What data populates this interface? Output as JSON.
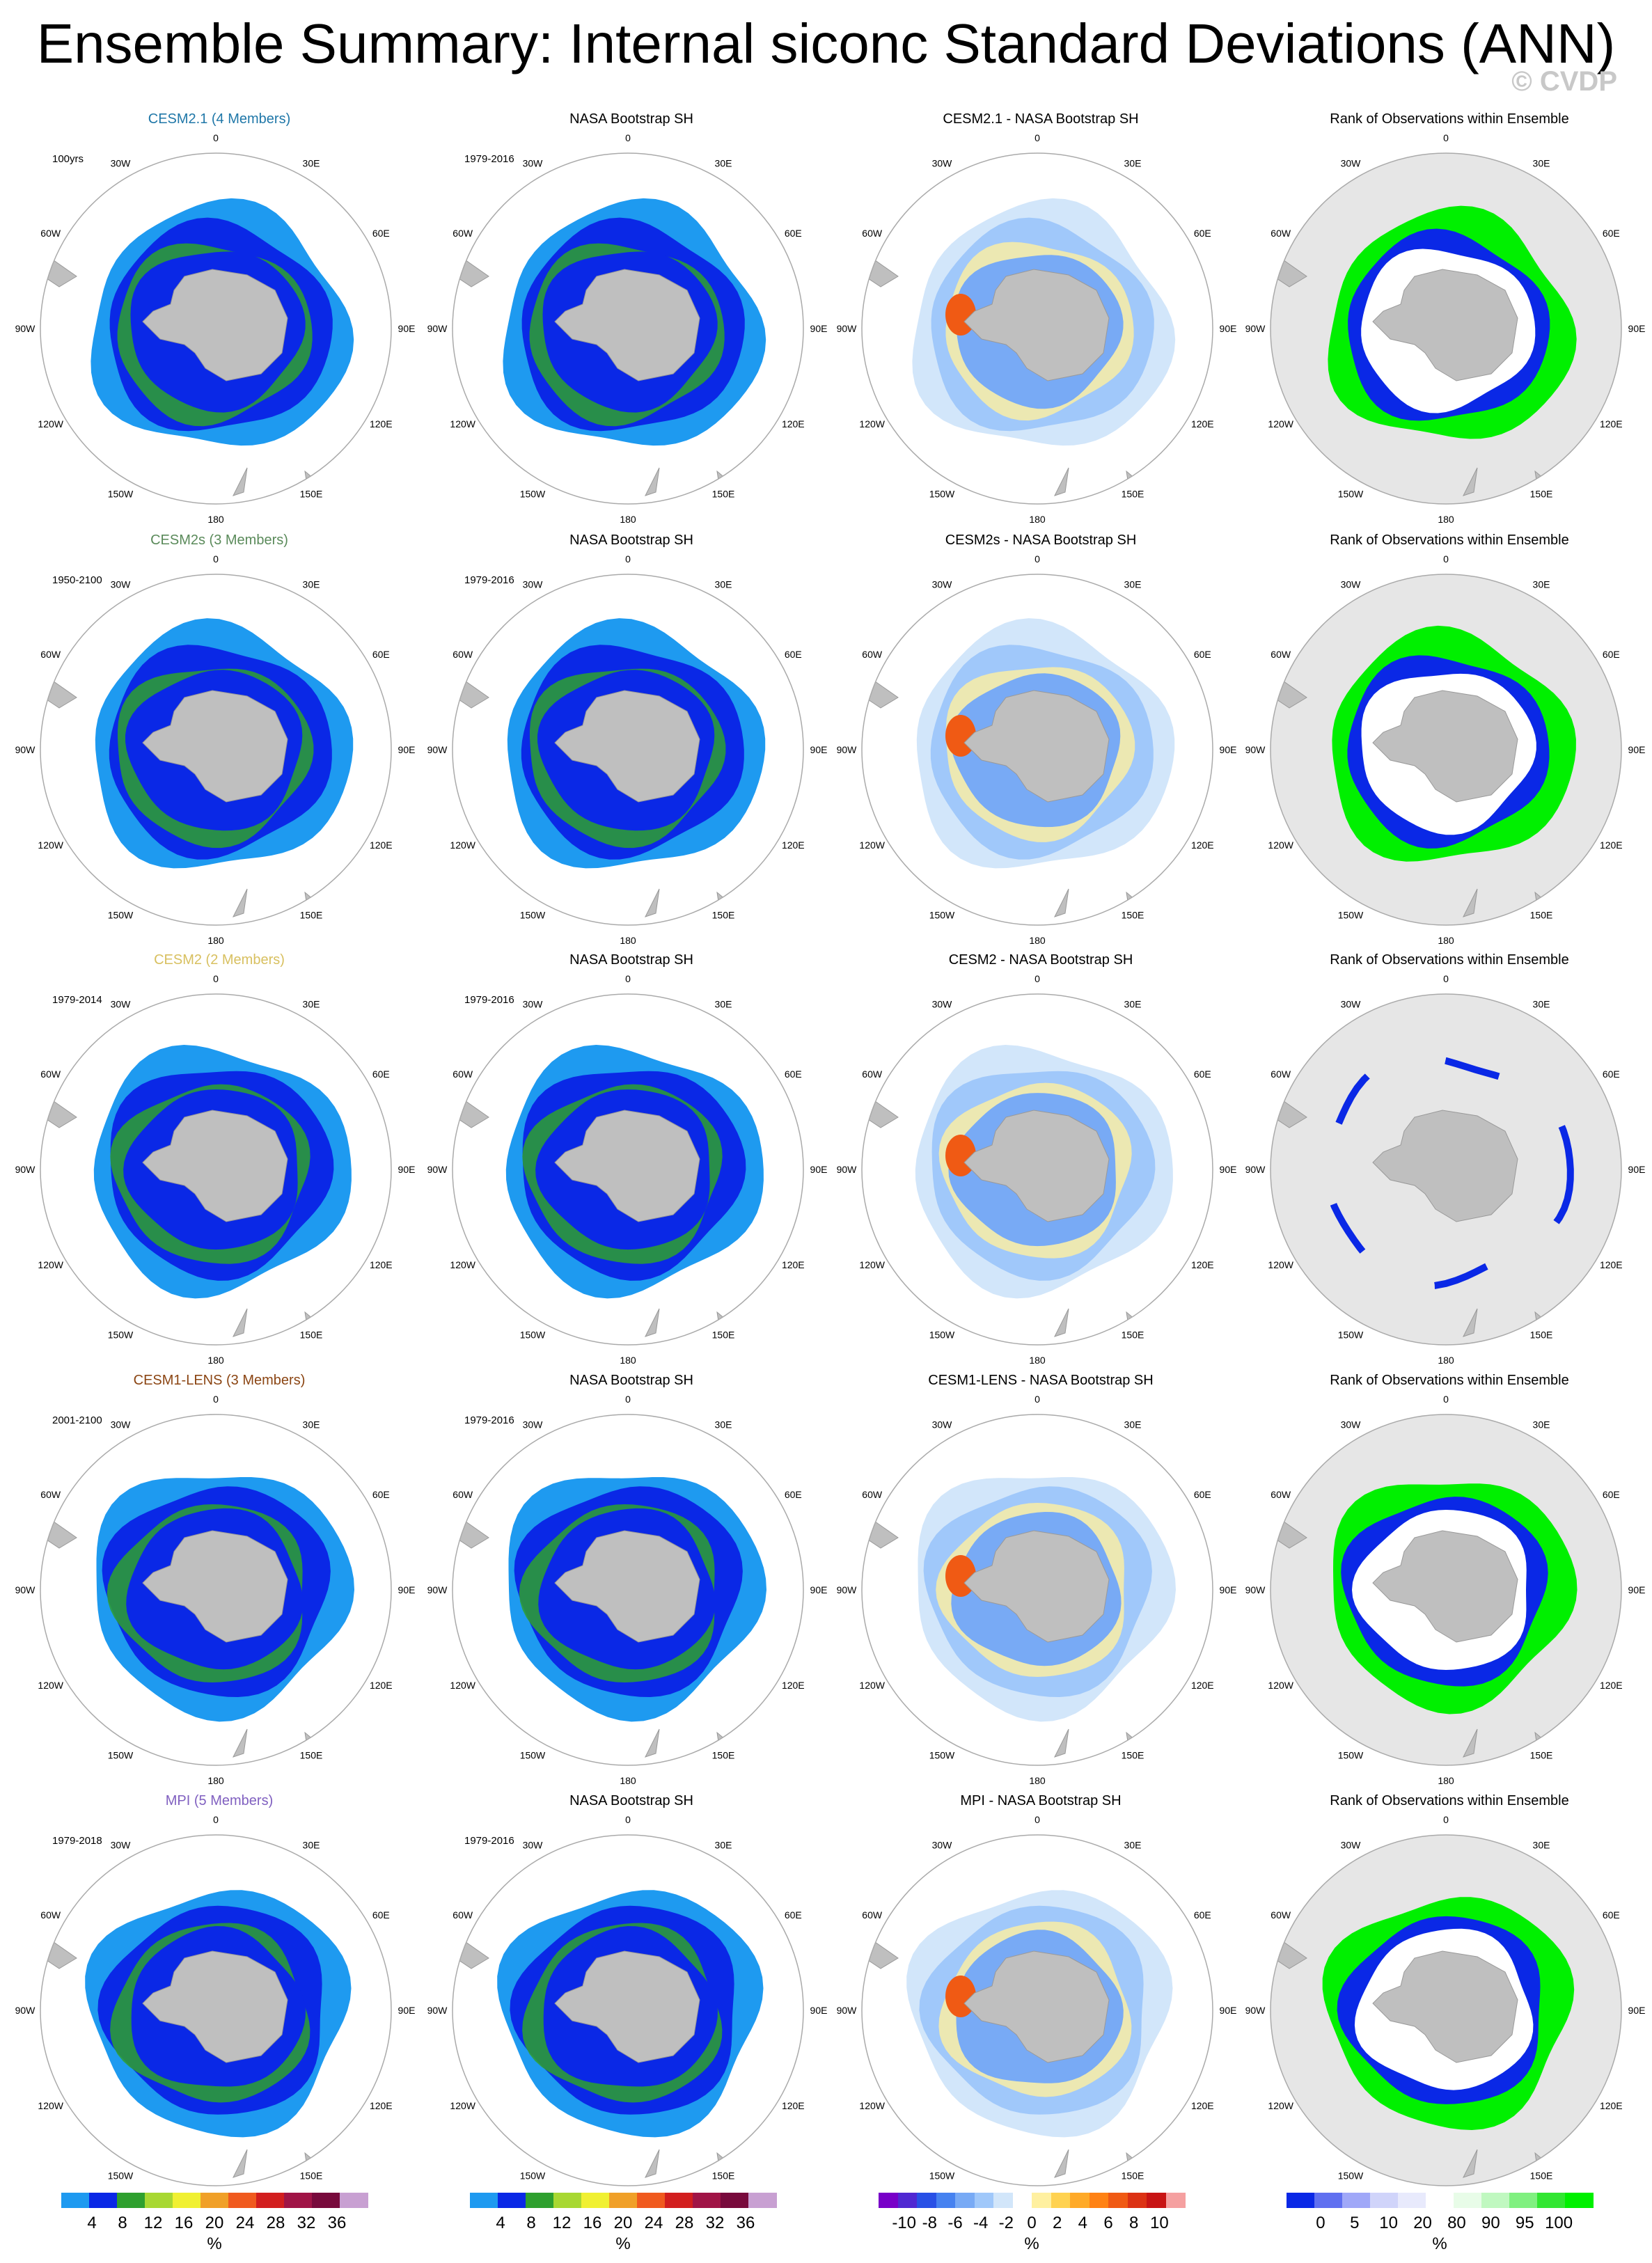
{
  "title": "Ensemble Summary: Internal siconc Standard Deviations (ANN)",
  "credit": "© CVDP",
  "rows": [
    {
      "model": "CESM2.1 (4 Members)",
      "color": "#1f77a8",
      "period": "100yrs",
      "diff_title": "CESM2.1 - NASA Bootstrap SH"
    },
    {
      "model": "CESM2s (3 Members)",
      "color": "#5a8a5a",
      "period": "1950-2100",
      "diff_title": "CESM2s - NASA Bootstrap SH"
    },
    {
      "model": "CESM2 (2 Members)",
      "color": "#d8c060",
      "period": "1979-2014",
      "diff_title": "CESM2 - NASA Bootstrap SH"
    },
    {
      "model": "CESM1-LENS (3 Members)",
      "color": "#8b4513",
      "period": "2001-2100",
      "diff_title": "CESM1-LENS - NASA Bootstrap SH"
    },
    {
      "model": "MPI (5 Members)",
      "color": "#8060c0",
      "period": "1979-2018",
      "diff_title": "MPI - NASA Bootstrap SH"
    }
  ],
  "obs_title": "NASA Bootstrap SH",
  "obs_period": "1979-2016",
  "rank_title": "Rank of Observations within Ensemble",
  "lon_labels": {
    "n": "0",
    "ne30": "30E",
    "ne60": "60E",
    "e90": "90E",
    "se120": "120E",
    "se150": "150E",
    "s": "180",
    "sw150": "150W",
    "sw120": "120W",
    "w90": "90W",
    "nw60": "60W",
    "nw30": "30W"
  },
  "colorbars": [
    {
      "unit": "%",
      "colors": [
        "#1e9af0",
        "#0a28e6",
        "#2ea02e",
        "#a8d832",
        "#f0f032",
        "#f0a028",
        "#f05a1e",
        "#d21e1e",
        "#a01446",
        "#780a3c",
        "#c8a0d2"
      ],
      "ticks": [
        "4",
        "8",
        "12",
        "16",
        "20",
        "24",
        "28",
        "32",
        "36"
      ]
    },
    {
      "unit": "%",
      "colors": [
        "#1e9af0",
        "#0a28e6",
        "#2ea02e",
        "#a8d832",
        "#f0f032",
        "#f0a028",
        "#f05a1e",
        "#d21e1e",
        "#a01446",
        "#780a3c",
        "#c8a0d2"
      ],
      "ticks": [
        "4",
        "8",
        "12",
        "16",
        "20",
        "24",
        "28",
        "32",
        "36"
      ]
    },
    {
      "unit": "%",
      "colors": [
        "#7800c8",
        "#5028d2",
        "#2850e6",
        "#4682f0",
        "#78aaf5",
        "#a0c8fa",
        "#d2e6fa",
        "#ffffff",
        "#fff0a0",
        "#ffd250",
        "#ffaa28",
        "#ff8214",
        "#f05a14",
        "#dc3214",
        "#c81414",
        "#f5a0a0"
      ],
      "ticks": [
        "-10",
        "-8",
        "-6",
        "-4",
        "-2",
        "0",
        "2",
        "4",
        "6",
        "8",
        "10"
      ]
    },
    {
      "unit": "%",
      "colors": [
        "#0a28e6",
        "#6070f0",
        "#a0a8f8",
        "#d0d4fa",
        "#e8eafc",
        "#ffffff",
        "#e8fce8",
        "#c0f8c0",
        "#80f080",
        "#32e632",
        "#00f000"
      ],
      "ticks": [
        "0",
        "5",
        "10",
        "20",
        "80",
        "90",
        "95",
        "100"
      ]
    }
  ]
}
